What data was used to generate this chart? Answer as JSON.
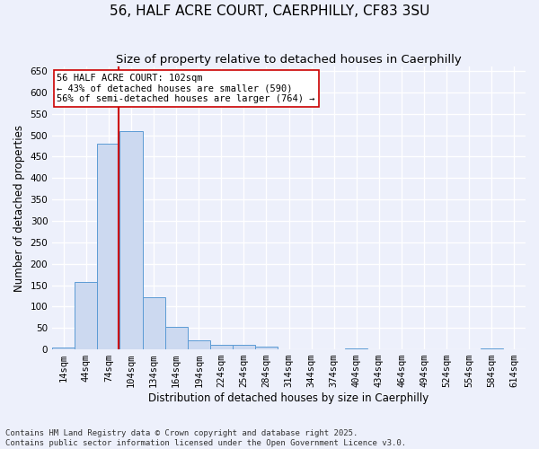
{
  "title": "56, HALF ACRE COURT, CAERPHILLY, CF83 3SU",
  "subtitle": "Size of property relative to detached houses in Caerphilly",
  "xlabel": "Distribution of detached houses by size in Caerphilly",
  "ylabel": "Number of detached properties",
  "bin_starts": [
    14,
    44,
    74,
    104,
    134,
    164,
    194,
    224,
    254,
    284,
    314,
    344,
    374,
    404,
    434,
    464,
    494,
    524,
    554,
    584,
    614
  ],
  "bin_width": 30,
  "bar_values": [
    5,
    158,
    480,
    510,
    122,
    52,
    22,
    10,
    10,
    7,
    0,
    0,
    0,
    3,
    0,
    0,
    0,
    0,
    0,
    2,
    0
  ],
  "bar_color": "#ccd9f0",
  "bar_edge_color": "#5b9bd5",
  "property_size": 102,
  "vline_color": "#cc0000",
  "annotation_text": "56 HALF ACRE COURT: 102sqm\n← 43% of detached houses are smaller (590)\n56% of semi-detached houses are larger (764) →",
  "annotation_box_color": "#ffffff",
  "annotation_box_edge": "#cc0000",
  "ylim": [
    0,
    660
  ],
  "yticks": [
    0,
    50,
    100,
    150,
    200,
    250,
    300,
    350,
    400,
    450,
    500,
    550,
    600,
    650
  ],
  "footer_line1": "Contains HM Land Registry data © Crown copyright and database right 2025.",
  "footer_line2": "Contains public sector information licensed under the Open Government Licence v3.0.",
  "background_color": "#edf0fb",
  "grid_color": "#ffffff",
  "title_fontsize": 11,
  "subtitle_fontsize": 9.5,
  "axis_label_fontsize": 8.5,
  "tick_fontsize": 7.5,
  "annotation_fontsize": 7.5,
  "footer_fontsize": 6.5
}
